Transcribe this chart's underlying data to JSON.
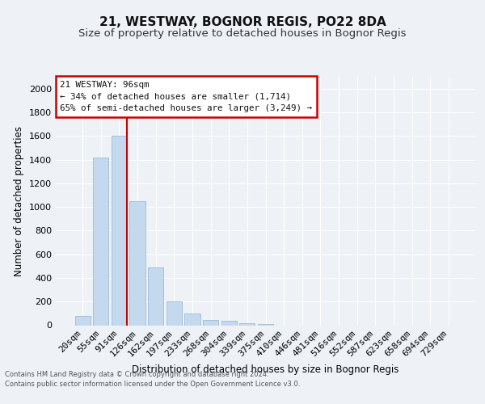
{
  "title": "21, WESTWAY, BOGNOR REGIS, PO22 8DA",
  "subtitle": "Size of property relative to detached houses in Bognor Regis",
  "xlabel": "Distribution of detached houses by size in Bognor Regis",
  "ylabel": "Number of detached properties",
  "footer_line1": "Contains HM Land Registry data © Crown copyright and database right 2024.",
  "footer_line2": "Contains public sector information licensed under the Open Government Licence v3.0.",
  "bar_labels": [
    "20sqm",
    "55sqm",
    "91sqm",
    "126sqm",
    "162sqm",
    "197sqm",
    "233sqm",
    "268sqm",
    "304sqm",
    "339sqm",
    "375sqm",
    "410sqm",
    "446sqm",
    "481sqm",
    "516sqm",
    "552sqm",
    "587sqm",
    "623sqm",
    "658sqm",
    "694sqm",
    "729sqm"
  ],
  "bar_values": [
    80,
    1420,
    1600,
    1050,
    490,
    200,
    100,
    42,
    40,
    20,
    10,
    0,
    0,
    0,
    0,
    0,
    0,
    0,
    0,
    0,
    0
  ],
  "bar_color": "#c5d9ee",
  "bar_edge_color": "#8ab4d4",
  "vline_color": "#cc0000",
  "vline_x_idx": 2,
  "annotation_title": "21 WESTWAY: 96sqm",
  "annotation_line1": "← 34% of detached houses are smaller (1,714)",
  "annotation_line2": "65% of semi-detached houses are larger (3,249) →",
  "annotation_box_color": "#cc0000",
  "annotation_bg": "#ffffff",
  "ylim": [
    0,
    2100
  ],
  "yticks": [
    0,
    200,
    400,
    600,
    800,
    1000,
    1200,
    1400,
    1600,
    1800,
    2000
  ],
  "background_color": "#eef2f7",
  "plot_bg_color": "#eef2f7",
  "grid_color": "#ffffff",
  "title_fontsize": 11,
  "subtitle_fontsize": 9.5
}
